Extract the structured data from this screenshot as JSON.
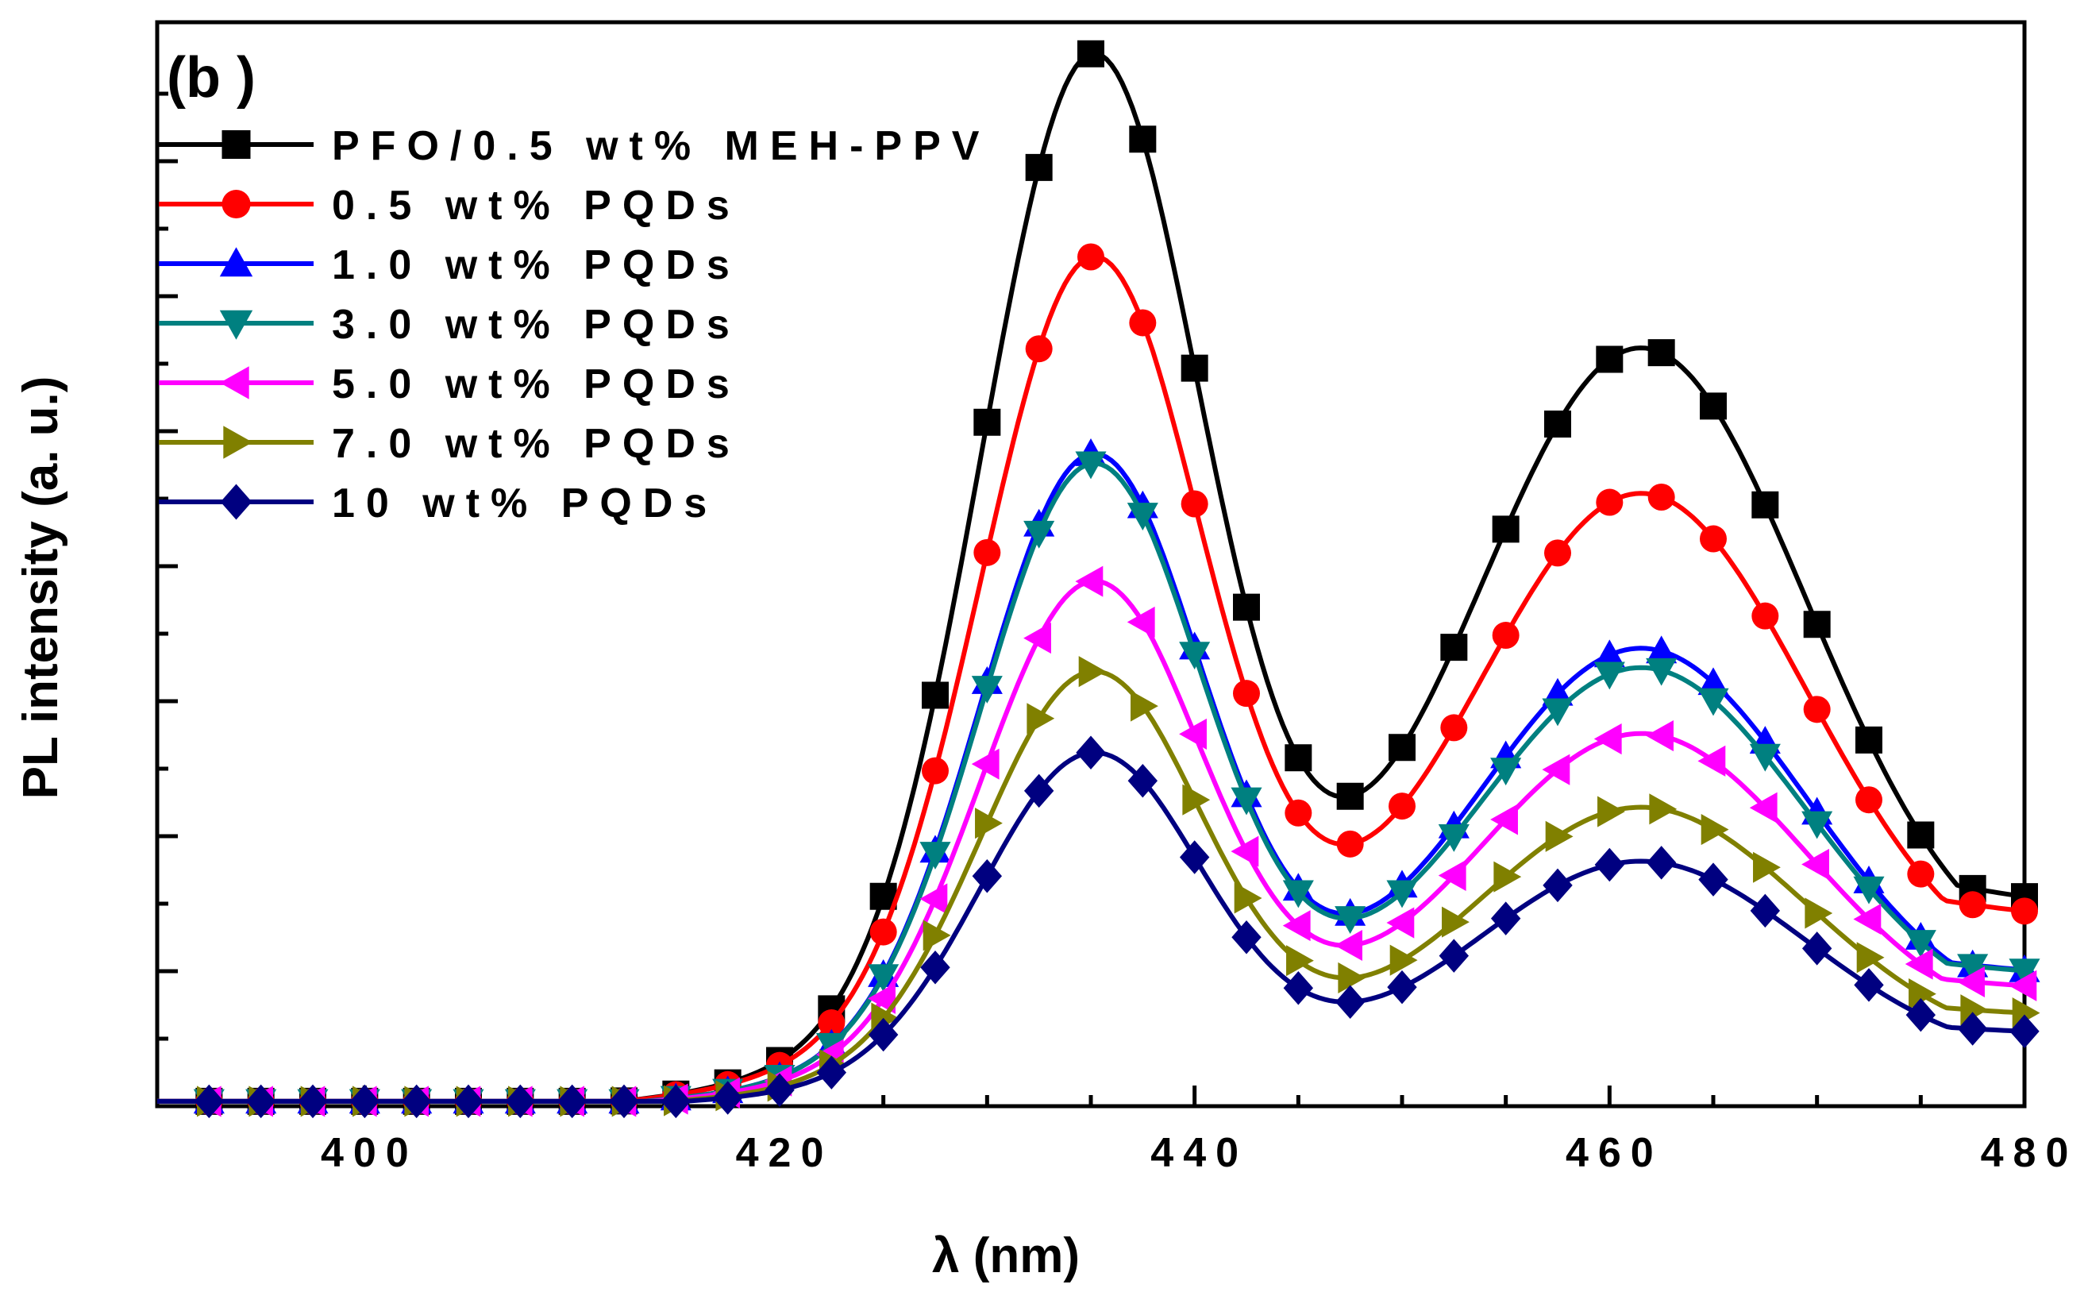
{
  "chart_data": {
    "type": "line",
    "panel_label": "(b )",
    "title": "",
    "xlabel": "λ (nm)",
    "ylabel": "PL intensity (a. u.)",
    "xlim": [
      390,
      480
    ],
    "ylim": [
      0,
      1
    ],
    "x_ticks": [
      400,
      420,
      440,
      460,
      480
    ],
    "y_tick_labels_shown": false,
    "grid": false,
    "legend_position": "top-left",
    "marker_step_nm": 2.5,
    "peak_model": {
      "peak1_center_nm": 435,
      "peak1_sigma_nm": 5.3,
      "peak2_center_nm": 461.5,
      "peak2_sigma_nm": 8.0,
      "onset_nm": 408,
      "tail_width_nm": 13
    },
    "series": [
      {
        "name": "PFO/0.5 wt% MEH-PPV",
        "color": "#000000",
        "marker": "square",
        "peak1": 0.99,
        "peak2": 0.665,
        "tail": 0.22
      },
      {
        "name": "0.5 wt% PQDs",
        "color": "#ff0000",
        "marker": "circle",
        "peak1": 0.785,
        "peak2": 0.52,
        "tail": 0.21
      },
      {
        "name": "1.0 wt% PQDs",
        "color": "#0000ff",
        "marker": "triangle-up",
        "peak1": 0.61,
        "peak2": 0.395,
        "tail": 0.145
      },
      {
        "name": "3.0 wt% PQDs",
        "color": "#008080",
        "marker": "triangle-down",
        "peak1": 0.6,
        "peak2": 0.375,
        "tail": 0.145
      },
      {
        "name": "5.0 wt% PQDs",
        "color": "#ff00ff",
        "marker": "triangle-left",
        "peak1": 0.485,
        "peak2": 0.315,
        "tail": 0.13
      },
      {
        "name": "7.0 wt% PQDs",
        "color": "#808000",
        "marker": "triangle-right",
        "peak1": 0.405,
        "peak2": 0.255,
        "tail": 0.1
      },
      {
        "name": "10  wt% PQDs",
        "color": "#000080",
        "marker": "diamond",
        "peak1": 0.33,
        "peak2": 0.21,
        "tail": 0.08
      }
    ]
  }
}
